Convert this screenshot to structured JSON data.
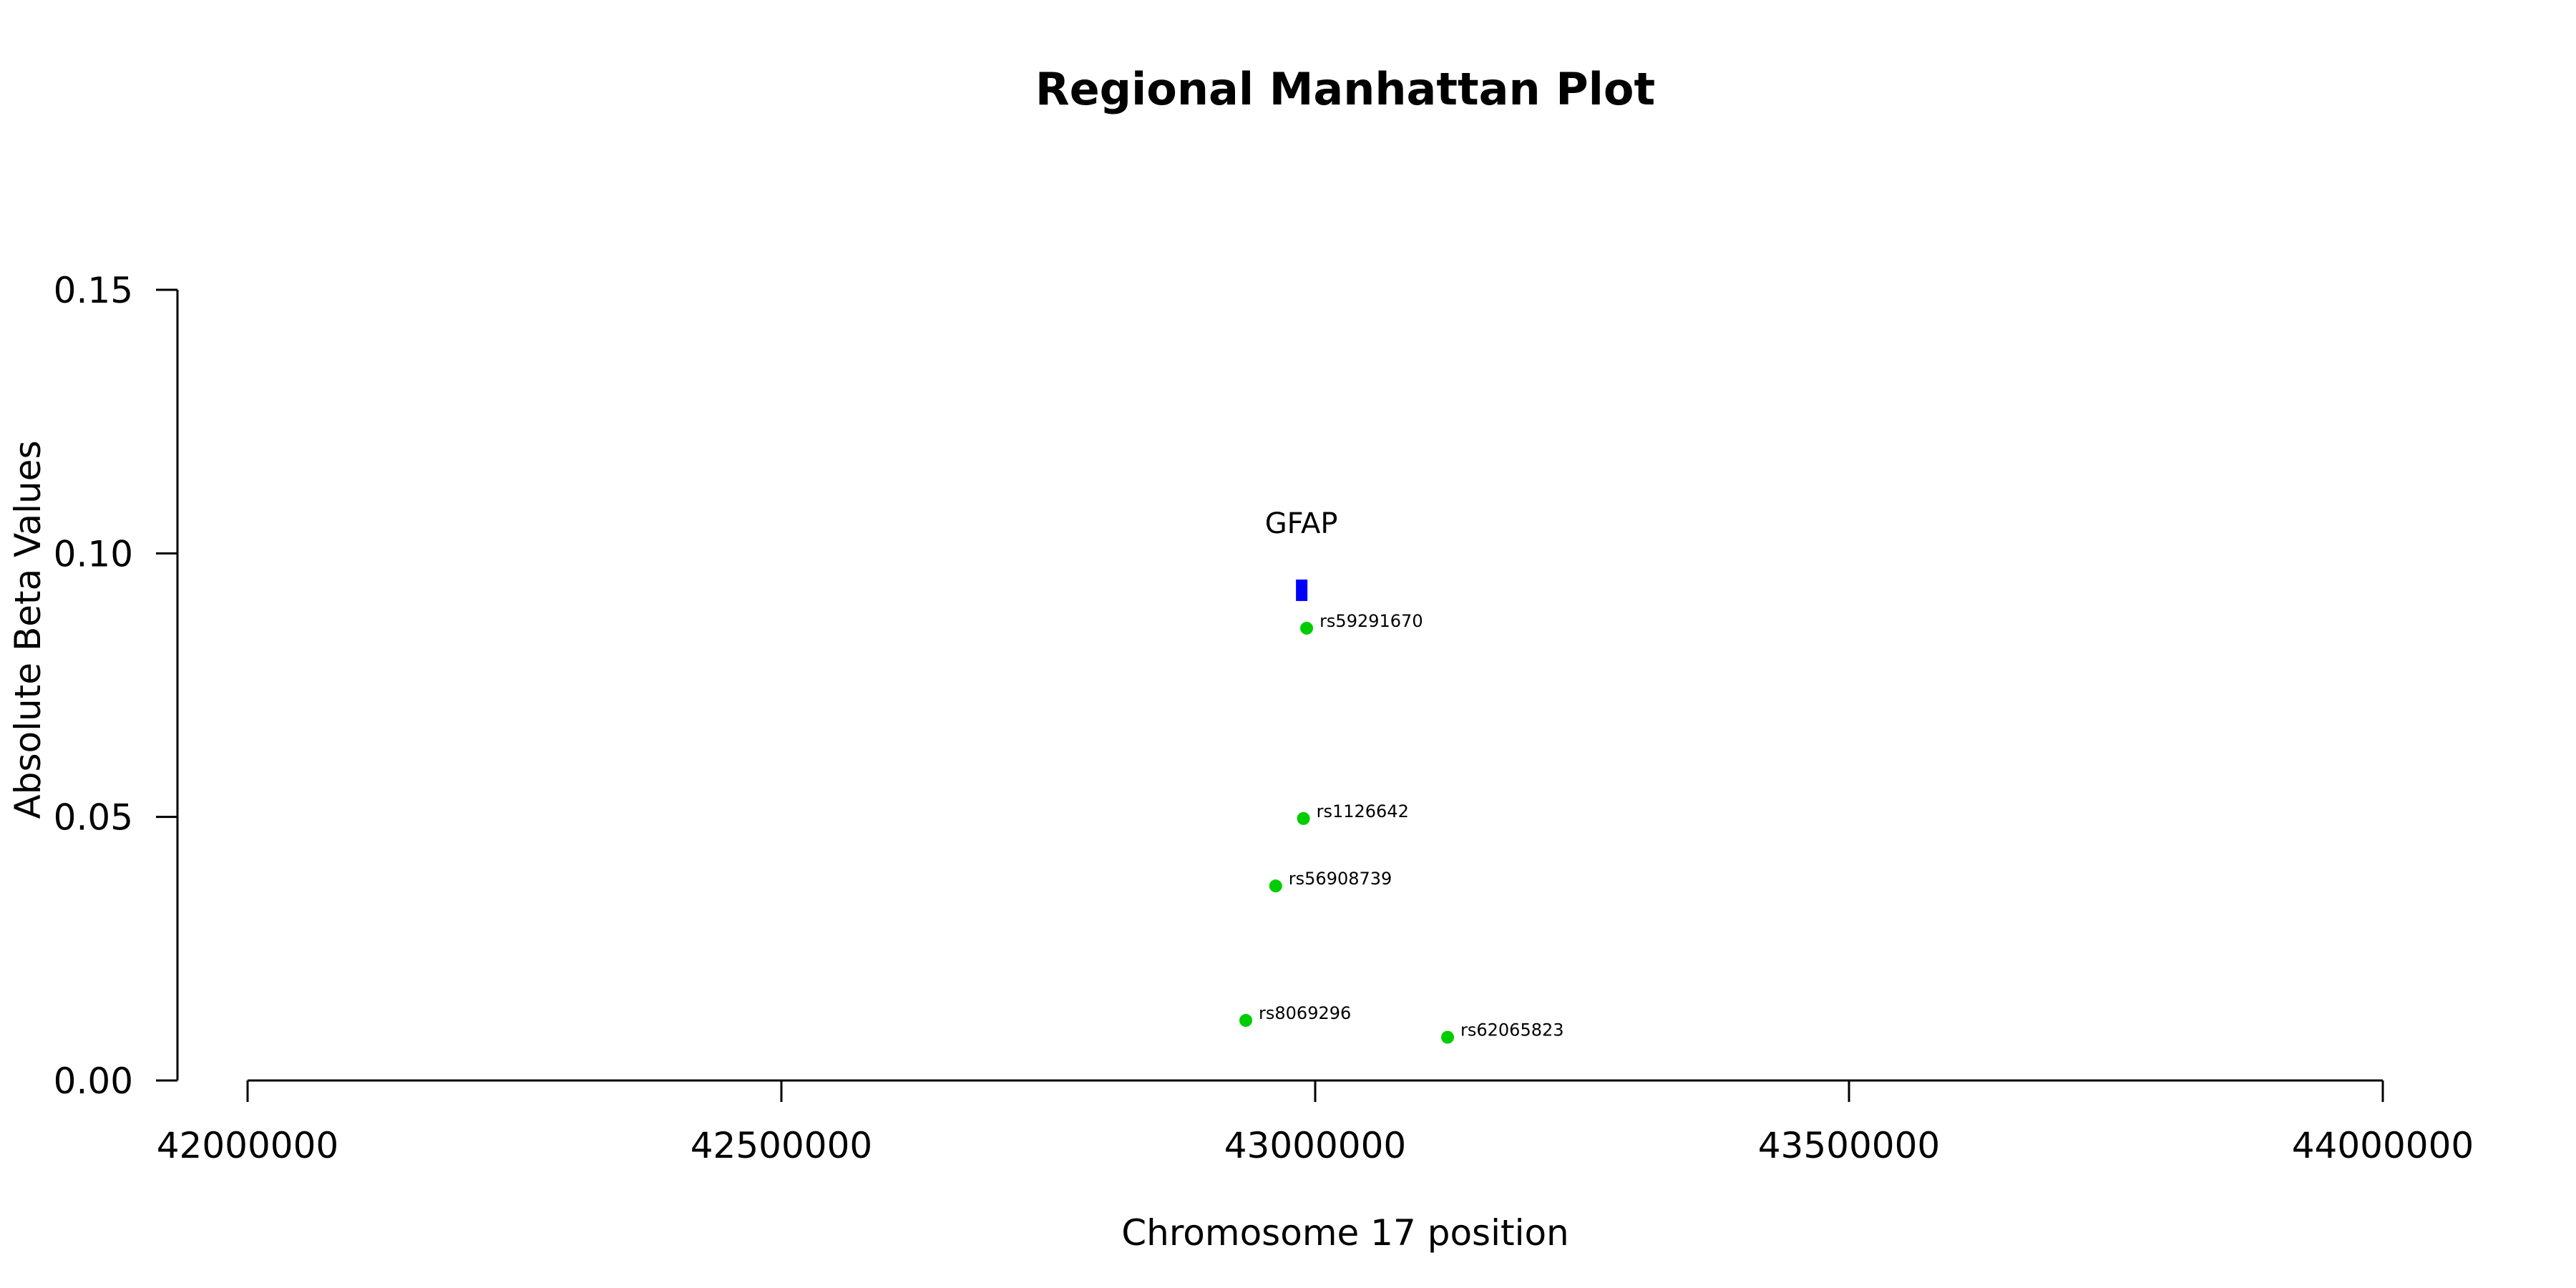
{
  "chart_data": {
    "type": "scatter",
    "title": "Regional Manhattan Plot",
    "xlabel": "Chromosome 17 position",
    "ylabel": "Absolute Beta Values",
    "xlim": [
      42000000,
      44000000
    ],
    "ylim": [
      0,
      0.15
    ],
    "x_ticks": [
      42000000,
      42500000,
      43000000,
      43500000,
      44000000
    ],
    "x_tick_labels": [
      "42000000",
      "42500000",
      "43000000",
      "43500000",
      "44000000"
    ],
    "y_ticks": [
      0,
      0.05,
      0.1,
      0.15
    ],
    "y_tick_labels": [
      "0.00",
      "0.05",
      "0.10",
      "0.15"
    ],
    "grid": false,
    "point_color": "#00cc00",
    "gene_color": "#0000ff",
    "points": [
      {
        "label": "rs59291670",
        "x": 42992000,
        "y": 0.0858
      },
      {
        "label": "rs1126642",
        "x": 42989000,
        "y": 0.0497
      },
      {
        "label": "rs56908739",
        "x": 42963000,
        "y": 0.0369
      },
      {
        "label": "rs8069296",
        "x": 42935000,
        "y": 0.0114
      },
      {
        "label": "rs62065823",
        "x": 43124000,
        "y": 0.0082
      }
    ],
    "genes": [
      {
        "name": "GFAP",
        "start": 42982000,
        "end": 42992000,
        "y": 0.093
      }
    ]
  }
}
